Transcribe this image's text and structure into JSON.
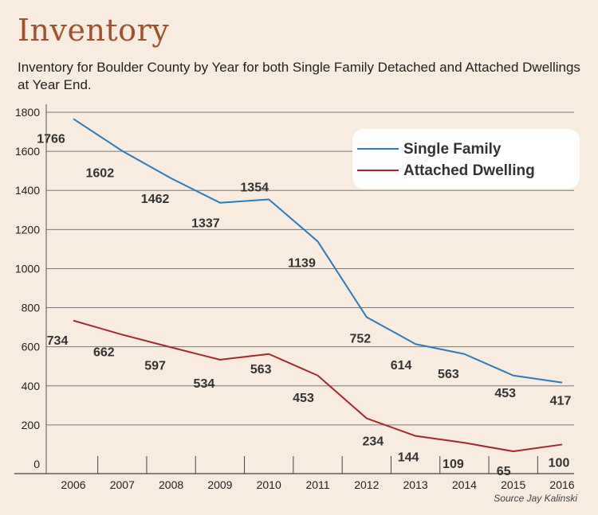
{
  "header": {
    "title": "Inventory",
    "subtitle": "Inventory for Boulder County by Year for both Single Family Detached and Attached Dwellings at Year End."
  },
  "footer": {
    "source": "Source Jay Kalinski"
  },
  "colors": {
    "single_family": "#2b7bbd",
    "attached": "#a3282b",
    "grid": "#777777",
    "background": "#f8ece0",
    "legend_bg": "#ffffff",
    "title": "#a0522d"
  },
  "chart_data": {
    "type": "line",
    "categories": [
      "2006",
      "2007",
      "2008",
      "2009",
      "2010",
      "2011",
      "2012",
      "2013",
      "2014",
      "2015",
      "2016"
    ],
    "series": [
      {
        "name": "Single Family",
        "values": [
          1766,
          1602,
          1462,
          1337,
          1354,
          1139,
          752,
          614,
          563,
          453,
          417
        ],
        "labels": [
          "1766",
          "1602",
          "1462",
          "1337",
          "1354",
          "1139",
          "752",
          "614",
          "563",
          "453",
          "417"
        ]
      },
      {
        "name": "Attached Dwelling",
        "values": [
          734,
          662,
          597,
          534,
          563,
          453,
          234,
          144,
          109,
          65,
          100
        ],
        "labels": [
          "734",
          "662",
          "597",
          "534",
          "563",
          "453",
          "234",
          "144",
          "109",
          "65",
          "100"
        ]
      }
    ],
    "yticks": [
      "0",
      "200",
      "400",
      "600",
      "800",
      "1000",
      "1200",
      "1400",
      "1600",
      "1800"
    ],
    "ylim": [
      0,
      1800
    ],
    "grid": true,
    "legend": "top-right"
  }
}
